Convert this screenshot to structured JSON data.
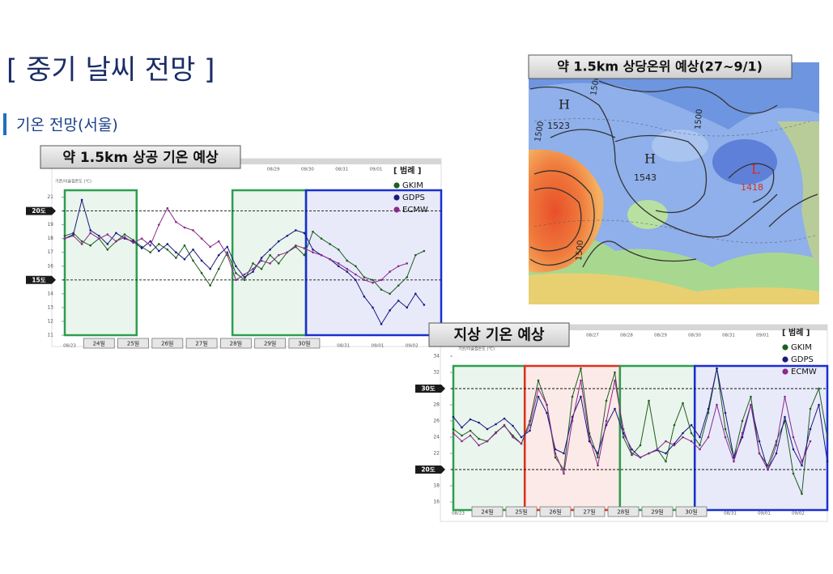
{
  "slide": {
    "title": "[ 중기 날씨 전망 ]",
    "section": "기온 전망(서울)"
  },
  "map": {
    "title": "약 1.5km 상당온위 예상(27~9/1)",
    "labels": [
      "H",
      "1523",
      "H",
      "1543",
      "L",
      "1418",
      "1500",
      "1500",
      "1500",
      "1500"
    ]
  },
  "chart_data": [
    {
      "type": "line",
      "title": "약 1.5km 상공 기온 예상",
      "y_label": "기온/이슬점온도 (℃)",
      "legend_title": "[ 범례 ]",
      "x": [
        23,
        23.25,
        23.5,
        23.75,
        24,
        24.25,
        24.5,
        24.75,
        25,
        25.25,
        25.5,
        25.75,
        26,
        26.25,
        26.5,
        26.75,
        27,
        27.25,
        27.5,
        27.75,
        28,
        28.25,
        28.5,
        28.75,
        29,
        29.25,
        29.5,
        29.75,
        30,
        30.25,
        30.5,
        30.75,
        31,
        31.25,
        31.5,
        31.75,
        32,
        32.25,
        32.5,
        32.75,
        33,
        33.25,
        33.5
      ],
      "series": [
        {
          "name": "GKIM",
          "color": "#1e5e1e",
          "values": [
            18.2,
            18.4,
            17.8,
            17.5,
            18.0,
            17.2,
            17.8,
            18.3,
            17.9,
            17.4,
            17.0,
            17.6,
            17.2,
            16.6,
            17.5,
            16.4,
            15.5,
            14.6,
            15.8,
            17.0,
            15.5,
            15.0,
            16.2,
            15.8,
            16.8,
            16.2,
            17.0,
            17.4,
            16.8,
            18.5,
            18.0,
            17.6,
            17.2,
            16.4,
            16.0,
            15.2,
            15.0,
            14.3,
            14.0,
            14.6,
            15.2,
            16.8,
            17.1
          ]
        },
        {
          "name": "GDPS",
          "color": "#1a1a80",
          "values": [
            18.0,
            18.3,
            20.8,
            18.6,
            18.2,
            17.6,
            18.4,
            18.0,
            17.8,
            17.3,
            17.8,
            17.1,
            17.6,
            17.0,
            16.5,
            17.2,
            16.4,
            15.8,
            16.8,
            17.4,
            16.0,
            15.2,
            15.6,
            16.6,
            17.2,
            17.8,
            18.2,
            18.6,
            18.4,
            17.2,
            16.8,
            16.5,
            16.0,
            15.6,
            15.0,
            13.8,
            13.0,
            11.8,
            12.8,
            13.5,
            13.0,
            14.0,
            13.2
          ]
        },
        {
          "name": "ECMW",
          "color": "#8a2a8a",
          "values": [
            18.0,
            18.2,
            17.6,
            18.4,
            18.0,
            18.3,
            17.8,
            18.1,
            17.7,
            18.0,
            17.5,
            19.0,
            20.2,
            19.2,
            18.8,
            18.6,
            18.0,
            17.4,
            17.8,
            16.8,
            15.0,
            15.4,
            15.8,
            16.4,
            16.2,
            16.8,
            17.0,
            17.5,
            17.3,
            17.0,
            16.8,
            16.5,
            16.2,
            15.8,
            15.4,
            15.0,
            14.8,
            15.0,
            15.6,
            16.0,
            16.2,
            null,
            null
          ]
        }
      ],
      "xlim": [
        23,
        34
      ],
      "ylim": [
        11,
        21.5
      ],
      "yticks": [
        11,
        12,
        13,
        14,
        15,
        16,
        17,
        18,
        19,
        20,
        21
      ],
      "xticks": [
        {
          "value": 23,
          "label": "08/23"
        },
        {
          "value": 31,
          "label": "08/31"
        },
        {
          "value": 32,
          "label": "09/01"
        },
        {
          "value": 33,
          "label": "09/02"
        }
      ],
      "xticks_top": [
        {
          "value": 29,
          "label": "08/29"
        },
        {
          "value": 30,
          "label": "08/30"
        },
        {
          "value": 31,
          "label": "08/31"
        },
        {
          "value": 32,
          "label": "09/01"
        }
      ],
      "day_ticks": [
        {
          "value": 24,
          "label": "24일"
        },
        {
          "value": 25,
          "label": "25일"
        },
        {
          "value": 26,
          "label": "26일"
        },
        {
          "value": 27,
          "label": "27일"
        },
        {
          "value": 28,
          "label": "28일"
        },
        {
          "value": 29,
          "label": "29일"
        },
        {
          "value": 30,
          "label": "30일"
        }
      ],
      "ref_lines": [
        {
          "value": 20,
          "label": "20도"
        },
        {
          "value": 15,
          "label": "15도"
        }
      ],
      "highlights": [
        {
          "from": 23,
          "to": 25.1,
          "color": "#2e9e4f"
        },
        {
          "from": 27.9,
          "to": 30.05,
          "color": "#2e9e4f"
        },
        {
          "from": 30.05,
          "to": 34,
          "color": "#1a2fd0"
        }
      ]
    },
    {
      "type": "line",
      "title": "지상 기온 예상",
      "y_label": "기온/이슬점온도 (℃)",
      "legend_title": "[ 범례 ]",
      "x": [
        23,
        23.25,
        23.5,
        23.75,
        24,
        24.25,
        24.5,
        24.75,
        25,
        25.25,
        25.5,
        25.75,
        26,
        26.25,
        26.5,
        26.75,
        27,
        27.25,
        27.5,
        27.75,
        28,
        28.25,
        28.5,
        28.75,
        29,
        29.25,
        29.5,
        29.75,
        30,
        30.25,
        30.5,
        30.75,
        31,
        31.25,
        31.5,
        31.75,
        32,
        32.25,
        32.5,
        32.75,
        33,
        33.25,
        33.5,
        33.75,
        34
      ],
      "series": [
        {
          "name": "GKIM",
          "color": "#1e5e1e",
          "values": [
            25.0,
            24.2,
            24.8,
            23.8,
            23.5,
            24.6,
            25.4,
            24.2,
            23.2,
            26.0,
            31.0,
            28.0,
            21.5,
            20.0,
            29.0,
            32.5,
            24.5,
            21.5,
            28.5,
            32.0,
            24.0,
            21.8,
            23.0,
            28.5,
            22.5,
            21.0,
            25.5,
            28.2,
            24.5,
            23.0,
            27.0,
            32.5,
            25.0,
            21.5,
            26.0,
            29.0,
            22.0,
            20.5,
            23.5,
            26.0,
            19.5,
            17.0,
            27.5,
            30.0,
            24.0
          ]
        },
        {
          "name": "GDPS",
          "color": "#1a1a80",
          "values": [
            26.5,
            25.2,
            26.2,
            25.8,
            25.0,
            25.6,
            26.3,
            25.4,
            24.0,
            24.8,
            29.0,
            27.0,
            22.5,
            22.0,
            26.5,
            29.0,
            23.5,
            22.0,
            25.5,
            27.5,
            24.5,
            22.5,
            21.5,
            22.0,
            22.4,
            22.0,
            23.2,
            24.5,
            25.5,
            24.0,
            27.5,
            32.5,
            27.0,
            21.5,
            24.0,
            28.0,
            23.5,
            20.0,
            22.0,
            26.5,
            22.5,
            20.5,
            25.0,
            28.0,
            21.0
          ]
        },
        {
          "name": "ECMW",
          "color": "#8a2a8a",
          "values": [
            24.5,
            23.5,
            24.2,
            23.0,
            23.5,
            24.5,
            25.5,
            24.0,
            23.2,
            25.5,
            30.0,
            28.0,
            22.0,
            19.5,
            26.0,
            31.0,
            24.0,
            20.5,
            26.0,
            31.0,
            25.0,
            22.0,
            21.5,
            22.0,
            22.5,
            23.5,
            23.0,
            24.0,
            23.5,
            22.5,
            24.0,
            28.0,
            24.0,
            21.0,
            24.5,
            28.0,
            22.0,
            20.0,
            23.0,
            29.0,
            24.0,
            21.0,
            23.5,
            null,
            null
          ]
        }
      ],
      "xlim": [
        23,
        34
      ],
      "ylim": [
        15,
        34
      ],
      "yticks": [
        16,
        18,
        20,
        22,
        24,
        26,
        28,
        30,
        32,
        34
      ],
      "xticks": [
        {
          "value": 23,
          "label": "08/23"
        },
        {
          "value": 31,
          "label": "08/31"
        },
        {
          "value": 32,
          "label": "09/01"
        },
        {
          "value": 33,
          "label": "09/02"
        }
      ],
      "xticks_top": [
        {
          "value": 27,
          "label": "08/27"
        },
        {
          "value": 28,
          "label": "08/28"
        },
        {
          "value": 29,
          "label": "08/29"
        },
        {
          "value": 30,
          "label": "08/30"
        },
        {
          "value": 31,
          "label": "08/31"
        },
        {
          "value": 32,
          "label": "09/01"
        }
      ],
      "day_ticks": [
        {
          "value": 24,
          "label": "24일"
        },
        {
          "value": 25,
          "label": "25일"
        },
        {
          "value": 26,
          "label": "26일"
        },
        {
          "value": 27,
          "label": "27일"
        },
        {
          "value": 28,
          "label": "28일"
        },
        {
          "value": 29,
          "label": "29일"
        },
        {
          "value": 30,
          "label": "30일"
        }
      ],
      "ref_lines": [
        {
          "value": 30,
          "label": "30도"
        },
        {
          "value": 20,
          "label": "20도"
        }
      ],
      "highlights": [
        {
          "from": 23,
          "to": 25.1,
          "color": "#2e9e4f"
        },
        {
          "from": 25.1,
          "to": 27.9,
          "color": "#e03020"
        },
        {
          "from": 27.9,
          "to": 30.1,
          "color": "#2e9e4f"
        },
        {
          "from": 30.1,
          "to": 34,
          "color": "#1a2fd0"
        }
      ]
    }
  ]
}
